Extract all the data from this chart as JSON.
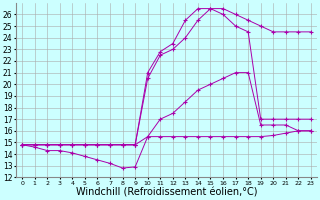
{
  "xlabel": "Windchill (Refroidissement éolien,°C)",
  "xlim": [
    -0.5,
    23.5
  ],
  "ylim": [
    12,
    27
  ],
  "yticks": [
    12,
    13,
    14,
    15,
    16,
    17,
    18,
    19,
    20,
    21,
    22,
    23,
    24,
    25,
    26
  ],
  "xticks": [
    0,
    1,
    2,
    3,
    4,
    5,
    6,
    7,
    8,
    9,
    10,
    11,
    12,
    13,
    14,
    15,
    16,
    17,
    18,
    19,
    20,
    21,
    22,
    23
  ],
  "bg_color": "#ccffff",
  "grid_color": "#aaaaaa",
  "line_color": "#aa00aa",
  "line1_x": [
    0,
    1,
    2,
    3,
    4,
    5,
    6,
    7,
    8,
    9,
    10,
    11,
    12,
    13,
    14,
    15,
    16,
    17,
    18,
    19,
    20,
    21,
    22,
    23
  ],
  "line1_y": [
    14.8,
    14.6,
    14.3,
    14.3,
    14.1,
    13.8,
    13.5,
    13.2,
    12.8,
    12.9,
    15.5,
    15.5,
    15.5,
    15.5,
    15.5,
    15.5,
    15.5,
    15.5,
    15.5,
    15.5,
    15.6,
    15.8,
    16.0,
    16.0
  ],
  "line2_x": [
    0,
    2,
    3,
    4,
    5,
    6,
    7,
    8,
    9,
    10,
    11,
    12,
    13,
    14,
    15,
    16,
    17,
    18,
    19,
    20,
    21,
    22,
    23
  ],
  "line2_y": [
    14.8,
    14.8,
    14.8,
    14.8,
    14.8,
    14.8,
    14.8,
    14.8,
    14.8,
    15.5,
    17.0,
    17.5,
    18.5,
    19.5,
    20.0,
    20.5,
    21.0,
    21.0,
    16.5,
    16.5,
    16.5,
    16.0,
    16.0
  ],
  "line3_x": [
    0,
    1,
    2,
    3,
    4,
    5,
    6,
    7,
    8,
    9,
    10,
    11,
    12,
    13,
    14,
    15,
    16,
    17,
    18,
    19,
    20,
    21,
    22,
    23
  ],
  "line3_y": [
    14.8,
    14.8,
    14.8,
    14.8,
    14.8,
    14.8,
    14.8,
    14.8,
    14.8,
    14.8,
    20.5,
    22.5,
    23.0,
    24.0,
    25.5,
    26.5,
    26.5,
    26.0,
    25.5,
    25.0,
    24.5,
    24.5,
    24.5,
    24.5
  ],
  "line4_x": [
    0,
    1,
    2,
    3,
    4,
    5,
    6,
    7,
    8,
    9,
    10,
    11,
    12,
    13,
    14,
    15,
    16,
    17,
    18,
    19,
    20,
    21,
    22,
    23
  ],
  "line4_y": [
    14.8,
    14.8,
    14.8,
    14.8,
    14.8,
    14.8,
    14.8,
    14.8,
    14.8,
    14.8,
    21.0,
    22.8,
    23.5,
    25.5,
    26.5,
    26.5,
    26.0,
    25.0,
    24.5,
    17.0,
    17.0,
    17.0,
    17.0,
    17.0
  ],
  "xlabel_fontsize": 7,
  "tick_fontsize": 6
}
